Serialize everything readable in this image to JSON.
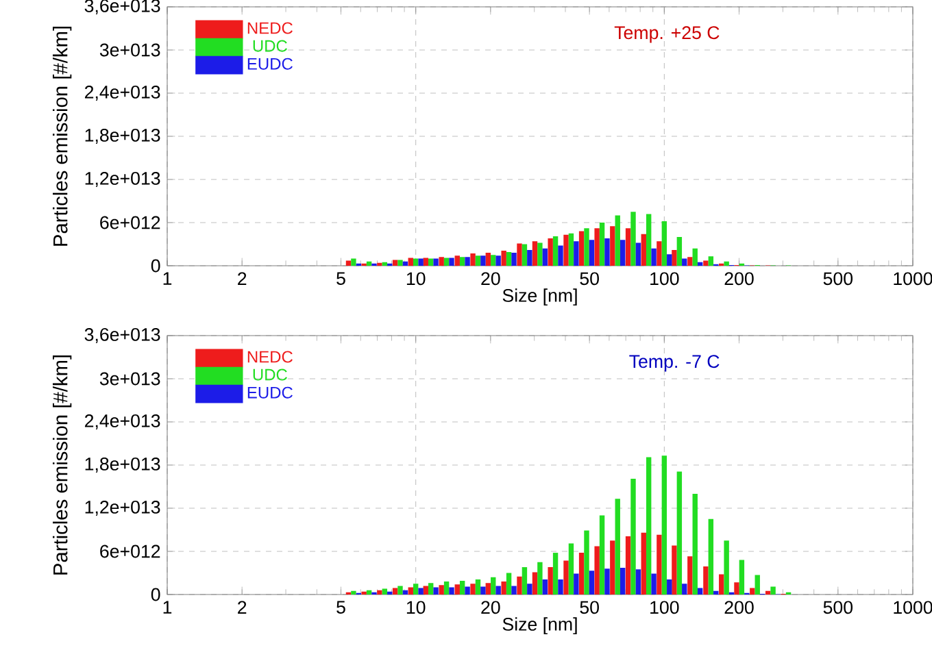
{
  "chart_data": [
    {
      "type": "bar",
      "x": [
        5.62,
        6.49,
        7.5,
        8.66,
        10,
        11.5,
        13.3,
        15.4,
        17.8,
        20.5,
        23.7,
        27.4,
        31.6,
        36.5,
        42.2,
        48.7,
        56.2,
        64.9,
        75,
        86.6,
        100,
        115,
        133,
        154,
        178,
        205,
        237,
        274,
        316
      ],
      "series": [
        {
          "name": "NEDC",
          "color": "#ee1c1c",
          "values": [
            700000000000.0,
            300000000000.0,
            400000000000.0,
            800000000000.0,
            1100000000000.0,
            1100000000000.0,
            1200000000000.0,
            1400000000000.0,
            1700000000000.0,
            1800000000000.0,
            2100000000000.0,
            3100000000000.0,
            3400000000000.0,
            3800000000000.0,
            4300000000000.0,
            4800000000000.0,
            5200000000000.0,
            5500000000000.0,
            5200000000000.0,
            4400000000000.0,
            3400000000000.0,
            2200000000000.0,
            1200000000000.0,
            700000000000.0,
            300000000000.0,
            100000000000.0,
            50000000000.0,
            50000000000.0,
            0
          ]
        },
        {
          "name": "UDC",
          "color": "#22dd22",
          "values": [
            1000000000000.0,
            600000000000.0,
            500000000000.0,
            800000000000.0,
            1000000000000.0,
            1000000000000.0,
            1100000000000.0,
            1200000000000.0,
            1400000000000.0,
            1500000000000.0,
            1900000000000.0,
            3000000000000.0,
            3200000000000.0,
            4100000000000.0,
            4500000000000.0,
            5200000000000.0,
            6000000000000.0,
            7000000000000.0,
            7500000000000.0,
            7200000000000.0,
            6200000000000.0,
            4000000000000.0,
            2400000000000.0,
            1300000000000.0,
            600000000000.0,
            300000000000.0,
            100000000000.0,
            50000000000.0,
            50000000000.0
          ]
        },
        {
          "name": "EUDC",
          "color": "#1c1ce8",
          "values": [
            300000000000.0,
            300000000000.0,
            300000000000.0,
            600000000000.0,
            1000000000000.0,
            1000000000000.0,
            1100000000000.0,
            1200000000000.0,
            1400000000000.0,
            1400000000000.0,
            1800000000000.0,
            2200000000000.0,
            2400000000000.0,
            2800000000000.0,
            3400000000000.0,
            3600000000000.0,
            3800000000000.0,
            3600000000000.0,
            3200000000000.0,
            2400000000000.0,
            1600000000000.0,
            1000000000000.0,
            500000000000.0,
            200000000000.0,
            100000000000.0,
            50000000000.0,
            0,
            0,
            0
          ]
        }
      ],
      "xlim": [
        1,
        1000
      ],
      "xticks": [
        1,
        2,
        5,
        10,
        20,
        50,
        100,
        200,
        500,
        1000
      ],
      "ylim": [
        0,
        36000000000000.0
      ],
      "yticks": [
        0,
        {
          "value": 6000000000000.0,
          "label": "6e+012"
        },
        {
          "value": 12000000000000.0,
          "label": "1,2e+013"
        },
        {
          "value": 18000000000000.0,
          "label": "1,8e+013"
        },
        {
          "value": 24000000000000.0,
          "label": "2,4e+013"
        },
        {
          "value": 30000000000000.0,
          "label": "3e+013"
        },
        {
          "value": 36000000000000.0,
          "label": "3,6e+013"
        }
      ],
      "log": "x",
      "grid": true,
      "legend": "top left",
      "xlabel": "Size [nm]",
      "ylabel": "Particles emission [#/km]",
      "annotations": [
        "Temp. +25 C"
      ]
    },
    {
      "type": "bar",
      "x": [
        5.62,
        6.49,
        7.5,
        8.66,
        10,
        11.5,
        13.3,
        15.4,
        17.8,
        20.5,
        23.7,
        27.4,
        31.6,
        36.5,
        42.2,
        48.7,
        56.2,
        64.9,
        75,
        86.6,
        100,
        115,
        133,
        154,
        178,
        205,
        237,
        274,
        316
      ],
      "series": [
        {
          "name": "NEDC",
          "color": "#ee1c1c",
          "values": [
            300000000000.0,
            400000000000.0,
            600000000000.0,
            900000000000.0,
            1000000000000.0,
            1200000000000.0,
            1300000000000.0,
            1400000000000.0,
            1500000000000.0,
            1600000000000.0,
            1800000000000.0,
            2500000000000.0,
            3100000000000.0,
            3800000000000.0,
            4700000000000.0,
            5800000000000.0,
            6700000000000.0,
            7500000000000.0,
            8100000000000.0,
            8600000000000.0,
            8300000000000.0,
            6800000000000.0,
            5300000000000.0,
            3900000000000.0,
            2800000000000.0,
            1700000000000.0,
            900000000000.0,
            500000000000.0,
            100000000000.0
          ]
        },
        {
          "name": "UDC",
          "color": "#22dd22",
          "values": [
            500000000000.0,
            600000000000.0,
            800000000000.0,
            1200000000000.0,
            1500000000000.0,
            1600000000000.0,
            1800000000000.0,
            1900000000000.0,
            2100000000000.0,
            2400000000000.0,
            3000000000000.0,
            3800000000000.0,
            4500000000000.0,
            5800000000000.0,
            7100000000000.0,
            8900000000000.0,
            11000000000000.0,
            13300000000000.0,
            16100000000000.0,
            19100000000000.0,
            19300000000000.0,
            17100000000000.0,
            14000000000000.0,
            10500000000000.0,
            7500000000000.0,
            4800000000000.0,
            2700000000000.0,
            1100000000000.0,
            300000000000.0
          ]
        },
        {
          "name": "EUDC",
          "color": "#1c1ce8",
          "values": [
            200000000000.0,
            300000000000.0,
            400000000000.0,
            600000000000.0,
            900000000000.0,
            1000000000000.0,
            1000000000000.0,
            1100000000000.0,
            1100000000000.0,
            1200000000000.0,
            1200000000000.0,
            1500000000000.0,
            2100000000000.0,
            2100000000000.0,
            2900000000000.0,
            3300000000000.0,
            3600000000000.0,
            3700000000000.0,
            3500000000000.0,
            2900000000000.0,
            2100000000000.0,
            1500000000000.0,
            900000000000.0,
            500000000000.0,
            300000000000.0,
            200000000000.0,
            100000000000.0,
            50000000000.0,
            0
          ]
        }
      ],
      "xlim": [
        1,
        1000
      ],
      "xticks": [
        1,
        2,
        5,
        10,
        20,
        50,
        100,
        200,
        500,
        1000
      ],
      "ylim": [
        0,
        36000000000000.0
      ],
      "yticks": [
        0,
        {
          "value": 6000000000000.0,
          "label": "6e+012"
        },
        {
          "value": 12000000000000.0,
          "label": "1,2e+013"
        },
        {
          "value": 18000000000000.0,
          "label": "1,8e+013"
        },
        {
          "value": 24000000000000.0,
          "label": "2,4e+013"
        },
        {
          "value": 30000000000000.0,
          "label": "3e+013"
        },
        {
          "value": 36000000000000.0,
          "label": "3,6e+013"
        }
      ],
      "log": "x",
      "grid": true,
      "legend": "top left",
      "xlabel": "Size [nm]",
      "ylabel": "Particles emission [#/km]",
      "annotations": [
        "Temp. -7 C"
      ]
    }
  ]
}
